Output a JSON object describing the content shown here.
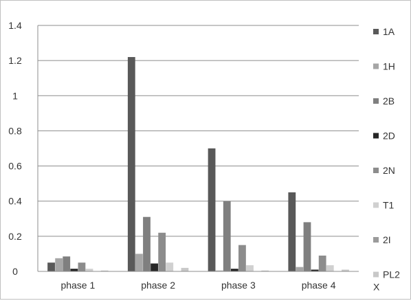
{
  "chart_data": {
    "type": "bar",
    "title": "",
    "xlabel": "",
    "ylabel": "",
    "ylim": [
      0,
      1.4
    ],
    "yticks": [
      "0",
      "0.2",
      "0.4",
      "0.6",
      "0.8",
      "1",
      "1.2",
      "1.4"
    ],
    "grid": true,
    "legend_position": "right",
    "categories": [
      "phase 1",
      "phase 2",
      "phase 3",
      "phase 4"
    ],
    "series": [
      {
        "name": "1A",
        "color": "#595959",
        "values": [
          0.05,
          1.22,
          0.7,
          0.45
        ]
      },
      {
        "name": "1H",
        "color": "#a6a6a6",
        "values": [
          0.075,
          0.1,
          0.005,
          0.025
        ]
      },
      {
        "name": "2B",
        "color": "#7f7f7f",
        "values": [
          0.085,
          0.31,
          0.4,
          0.28
        ]
      },
      {
        "name": "2D",
        "color": "#262626",
        "values": [
          0.015,
          0.045,
          0.015,
          0.01
        ]
      },
      {
        "name": "2N",
        "color": "#8c8c8c",
        "values": [
          0.05,
          0.22,
          0.15,
          0.09
        ]
      },
      {
        "name": "T1",
        "color": "#d0d0d0",
        "values": [
          0.015,
          0.05,
          0.035,
          0.035
        ]
      },
      {
        "name": "2I",
        "color": "#9b9b9b",
        "values": [
          0.0,
          0.0,
          0.0,
          0.0
        ]
      },
      {
        "name": "PL2 X",
        "color": "#c8c8c8",
        "values": [
          0.005,
          0.02,
          0.005,
          0.01
        ]
      }
    ]
  }
}
